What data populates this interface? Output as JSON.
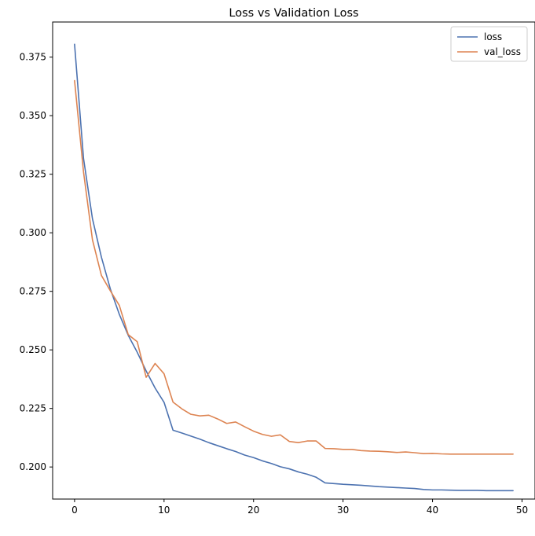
{
  "chart_data": {
    "type": "line",
    "title": "Loss vs Validation Loss",
    "xlabel": "",
    "ylabel": "",
    "xlim": [
      -2.45,
      51.45
    ],
    "ylim": [
      0.1863,
      0.39
    ],
    "x_ticks": [
      0,
      10,
      20,
      30,
      40,
      50
    ],
    "y_ticks": [
      0.2,
      0.225,
      0.25,
      0.275,
      0.3,
      0.325,
      0.35,
      0.375
    ],
    "y_tick_labels": [
      "0.200",
      "0.225",
      "0.250",
      "0.275",
      "0.300",
      "0.325",
      "0.350",
      "0.375"
    ],
    "grid": false,
    "legend_position": "top-right",
    "x": [
      0,
      1,
      2,
      3,
      4,
      5,
      6,
      7,
      8,
      9,
      10,
      11,
      12,
      13,
      14,
      15,
      16,
      17,
      18,
      19,
      20,
      21,
      22,
      23,
      24,
      25,
      26,
      27,
      28,
      29,
      30,
      31,
      32,
      33,
      34,
      35,
      36,
      37,
      38,
      39,
      40,
      41,
      42,
      43,
      44,
      45,
      46,
      47,
      48,
      49
    ],
    "series": [
      {
        "name": "loss",
        "color": "#4c72b0",
        "values": [
          0.3805,
          0.3318,
          0.306,
          0.2896,
          0.276,
          0.2652,
          0.2562,
          0.249,
          0.241,
          0.2337,
          0.2276,
          0.2157,
          0.2145,
          0.2132,
          0.2119,
          0.2104,
          0.2091,
          0.2078,
          0.2066,
          0.2051,
          0.204,
          0.2026,
          0.2015,
          0.2001,
          0.1992,
          0.1979,
          0.1969,
          0.1956,
          0.1932,
          0.1929,
          0.1926,
          0.1924,
          0.1922,
          0.1919,
          0.1916,
          0.1914,
          0.1912,
          0.191,
          0.1908,
          0.1904,
          0.1902,
          0.1902,
          0.1901,
          0.19,
          0.19,
          0.19,
          0.1899,
          0.1899,
          0.1899,
          0.1899
        ]
      },
      {
        "name": "val_loss",
        "color": "#dd8452",
        "values": [
          0.365,
          0.326,
          0.297,
          0.2818,
          0.2752,
          0.269,
          0.2565,
          0.2535,
          0.2383,
          0.2442,
          0.2398,
          0.2277,
          0.2248,
          0.2225,
          0.2218,
          0.2221,
          0.2205,
          0.2186,
          0.2192,
          0.2172,
          0.2153,
          0.2139,
          0.2131,
          0.2137,
          0.2109,
          0.2104,
          0.2111,
          0.2111,
          0.2079,
          0.2078,
          0.2075,
          0.2075,
          0.207,
          0.2068,
          0.2067,
          0.2065,
          0.2062,
          0.2064,
          0.2061,
          0.2057,
          0.2058,
          0.2056,
          0.2055,
          0.2055,
          0.2055,
          0.2055,
          0.2055,
          0.2055,
          0.2055,
          0.2055
        ]
      }
    ]
  }
}
